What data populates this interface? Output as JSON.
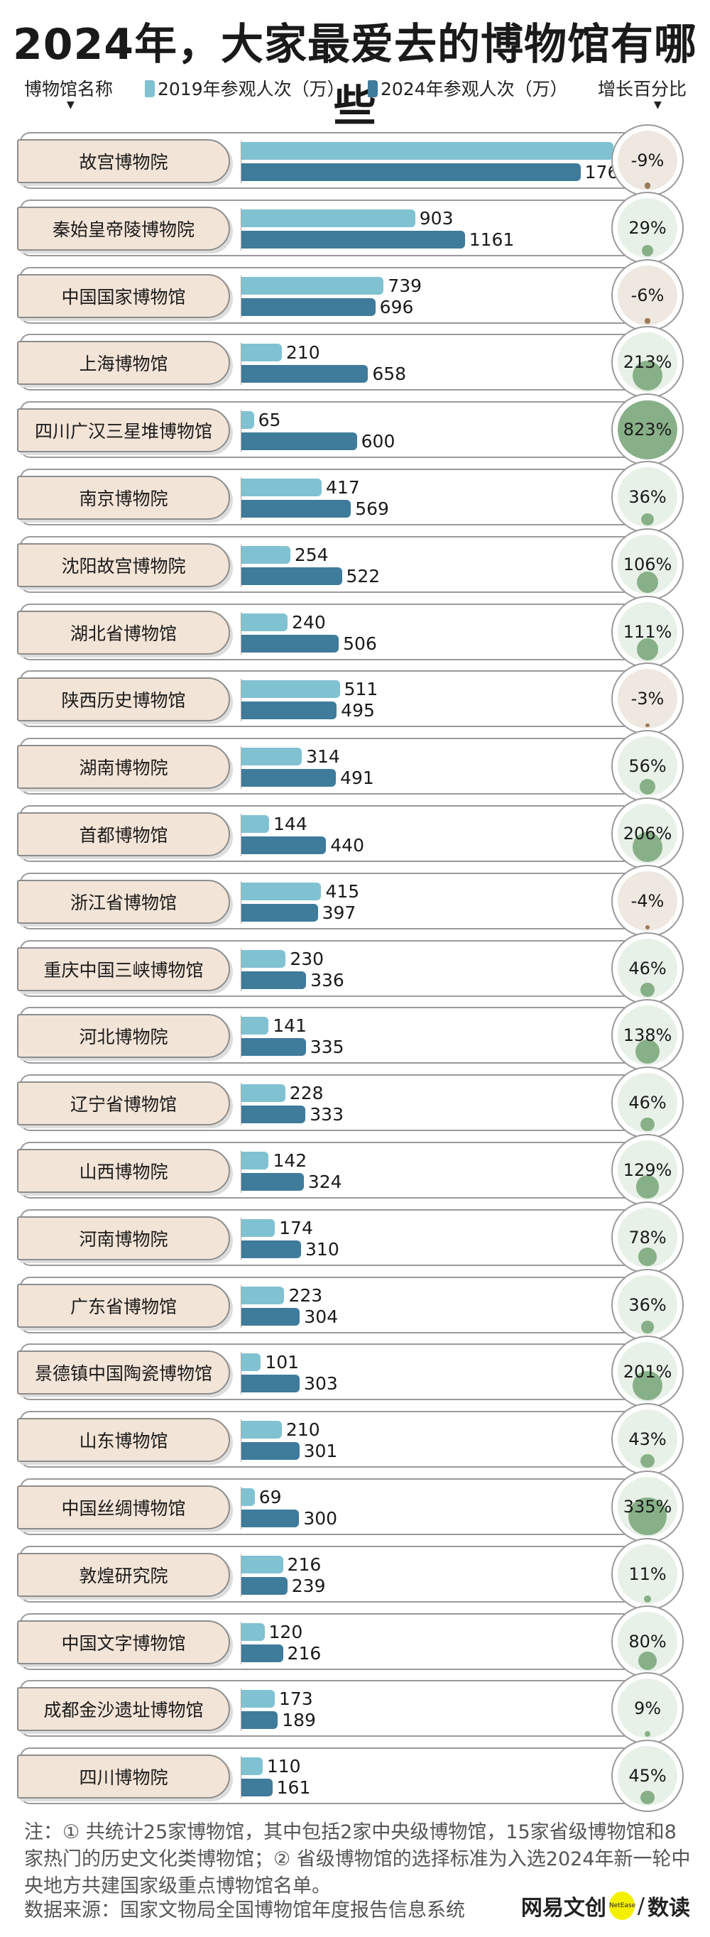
{
  "title": "2024年，大家最爱去的博物馆有哪些",
  "header": {
    "name_col": "博物馆名称",
    "legend_2019": "2019年参观人次（万）",
    "legend_2024": "2024年参观人次（万）",
    "growth_col": "增长百分比",
    "arrow": "▼"
  },
  "colors": {
    "bar2019": "#80c2d1",
    "bar2024": "#3f7b9b",
    "label_bg": "#f2e4d7",
    "pos_bg": "#e8f1e8",
    "pos_dot": "#88b088",
    "neg_bg": "#efe8e0",
    "neg_dot": "#9a7a5a"
  },
  "chart_data": {
    "type": "bar",
    "title": "2024年，大家最爱去的博物馆有哪些",
    "xlabel": "参观人次（万）",
    "ylabel": "博物馆名称",
    "xlim": [
      0,
      2000
    ],
    "categories": [
      "故宫博物院",
      "秦始皇帝陵博物院",
      "中国国家博物馆",
      "上海博物馆",
      "四川广汉三星堆博物馆",
      "南京博物院",
      "沈阳故宫博物院",
      "湖北省博物馆",
      "陕西历史博物馆",
      "湖南博物院",
      "首都博物馆",
      "浙江省博物馆",
      "重庆中国三峡博物馆",
      "河北博物院",
      "辽宁省博物馆",
      "山西博物院",
      "河南博物院",
      "广东省博物馆",
      "景德镇中国陶瓷博物馆",
      "山东博物馆",
      "中国丝绸博物馆",
      "敦煌研究院",
      "中国文字博物馆",
      "成都金沙遗址博物馆",
      "四川博物院"
    ],
    "series": [
      {
        "name": "2019年参观人次（万）",
        "values": [
          1933,
          903,
          739,
          210,
          65,
          417,
          254,
          240,
          511,
          314,
          144,
          415,
          230,
          141,
          228,
          142,
          174,
          223,
          101,
          210,
          69,
          216,
          120,
          173,
          110
        ]
      },
      {
        "name": "2024年参观人次（万）",
        "values": [
          1762,
          1161,
          696,
          658,
          600,
          569,
          522,
          506,
          495,
          491,
          440,
          397,
          336,
          335,
          333,
          324,
          310,
          304,
          303,
          301,
          300,
          239,
          216,
          189,
          161
        ]
      }
    ],
    "growth_labels": [
      "-9%",
      "29%",
      "-6%",
      "213%",
      "823%",
      "36%",
      "106%",
      "111%",
      "-3%",
      "56%",
      "206%",
      "-4%",
      "46%",
      "138%",
      "46%",
      "129%",
      "78%",
      "36%",
      "201%",
      "43%",
      "335%",
      "11%",
      "80%",
      "9%",
      "45%"
    ],
    "growth": [
      -9,
      29,
      -6,
      213,
      823,
      36,
      106,
      111,
      -3,
      56,
      206,
      -4,
      46,
      138,
      46,
      129,
      78,
      36,
      201,
      43,
      335,
      11,
      80,
      9,
      45
    ]
  },
  "footer": {
    "note": "注：① 共统计25家博物馆，其中包括2家中央级博物馆，15家省级博物馆和8家热门的历史文化类博物馆；② 省级博物馆的选择标准为入选2024年新一轮中央地方共建国家级重点博物馆名单。",
    "source": "数据来源：国家文物局全国博物馆年度报告信息系统",
    "logo_left": "网易文创",
    "logo_badge": "NetEase",
    "logo_sep": "/",
    "logo_right": "数读"
  }
}
